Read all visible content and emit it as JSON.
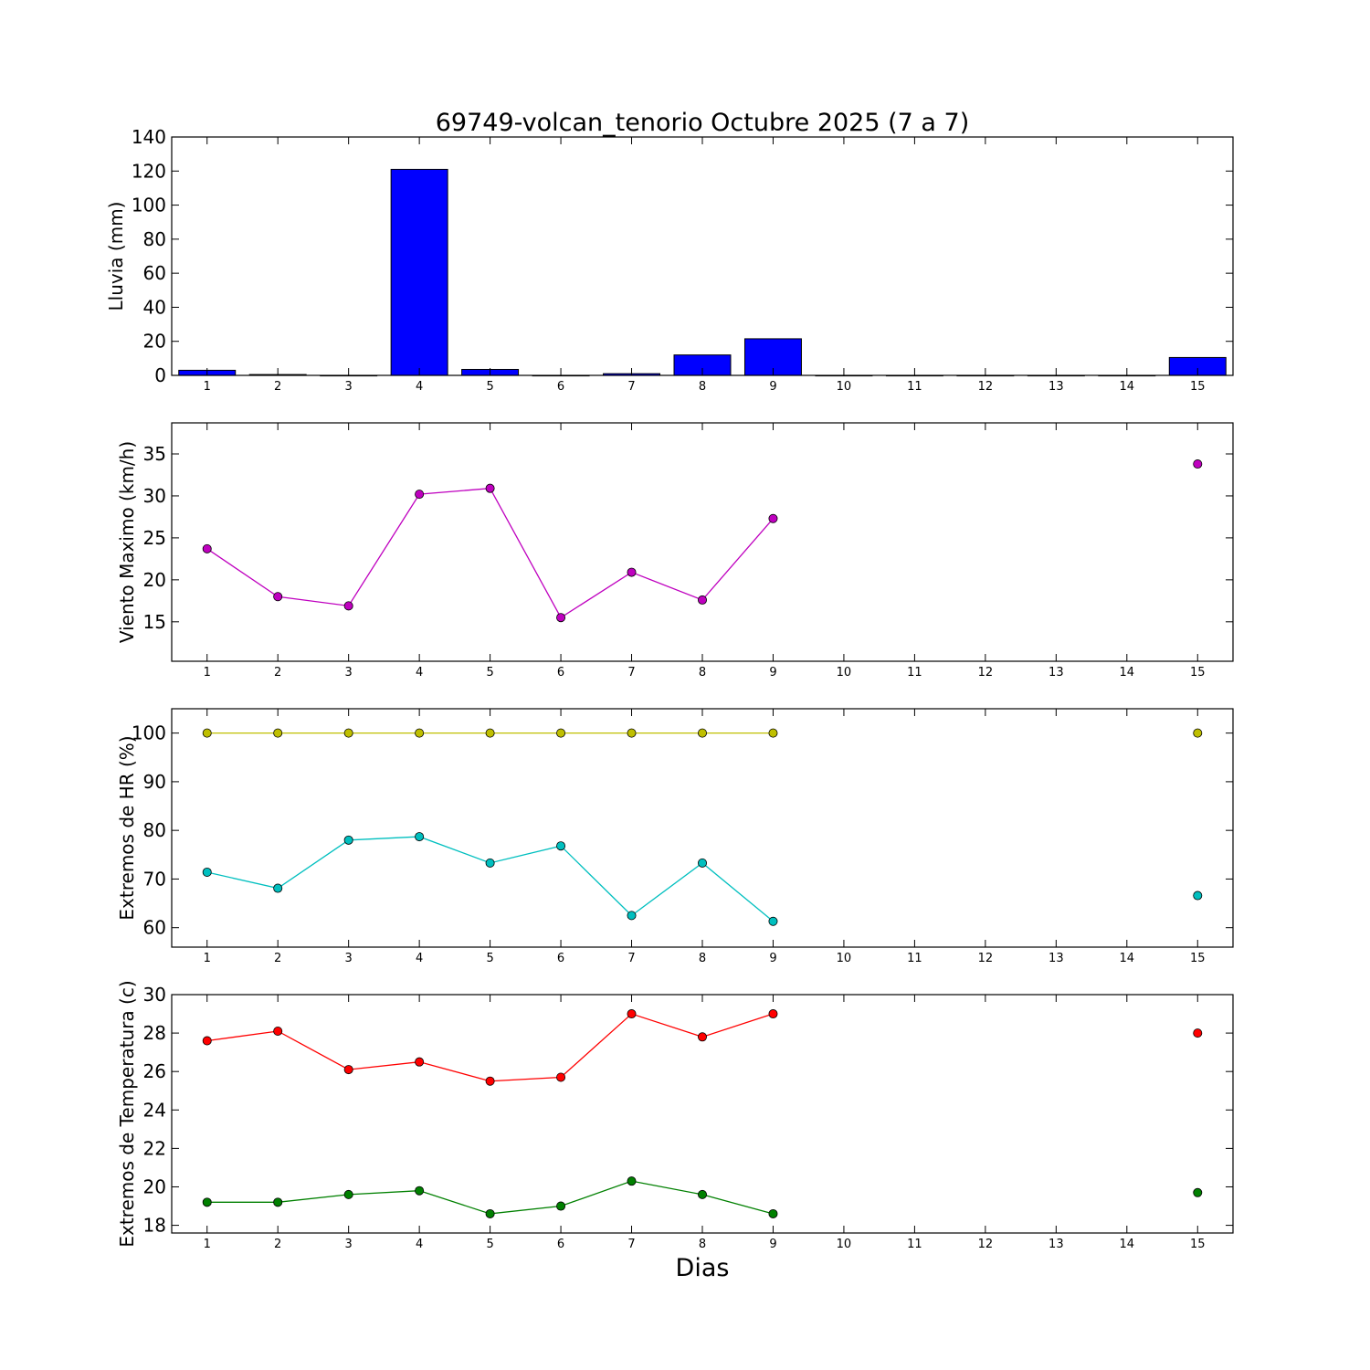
{
  "figure": {
    "title": "69749-volcan_tenorio Octubre 2025  (7 a 7)",
    "xlabel": "Dias"
  },
  "chart_data": [
    {
      "type": "bar",
      "name": "lluvia",
      "ylabel": "Lluvia (mm)",
      "ylim": [
        0,
        140
      ],
      "yticks": [
        0,
        20,
        40,
        60,
        80,
        100,
        120,
        140
      ],
      "xlim": [
        0.5,
        15.5
      ],
      "xticks": [
        1,
        2,
        3,
        4,
        5,
        6,
        7,
        8,
        9,
        10,
        11,
        12,
        13,
        14,
        15
      ],
      "bar_color": "#0000ff",
      "series": [
        {
          "x": [
            1,
            2,
            3,
            4,
            5,
            6,
            7,
            8,
            9,
            10,
            11,
            12,
            13,
            14,
            15
          ],
          "values": [
            3,
            0.5,
            0,
            121,
            3.5,
            0,
            1,
            12,
            21.5,
            0,
            0,
            0,
            0,
            0,
            10.5
          ]
        }
      ]
    },
    {
      "type": "line",
      "name": "viento",
      "ylabel": "Viento Maximo (km/h)",
      "ylim": [
        10.3,
        38.7
      ],
      "yticks": [
        15,
        20,
        25,
        30,
        35
      ],
      "xlim": [
        0.5,
        15.5
      ],
      "xticks": [
        1,
        2,
        3,
        4,
        5,
        6,
        7,
        8,
        9,
        10,
        11,
        12,
        13,
        14,
        15
      ],
      "series": [
        {
          "color": "#bf00bf",
          "x": [
            1,
            2,
            3,
            4,
            5,
            6,
            7,
            8,
            9,
            15
          ],
          "values": [
            23.7,
            18.0,
            16.9,
            30.2,
            30.9,
            15.5,
            20.9,
            17.6,
            27.3,
            33.8
          ]
        }
      ]
    },
    {
      "type": "line",
      "name": "humedad",
      "ylabel": "Extremos de HR (%)",
      "ylim": [
        56,
        105
      ],
      "yticks": [
        60,
        70,
        80,
        90,
        100
      ],
      "xlim": [
        0.5,
        15.5
      ],
      "xticks": [
        1,
        2,
        3,
        4,
        5,
        6,
        7,
        8,
        9,
        10,
        11,
        12,
        13,
        14,
        15
      ],
      "series": [
        {
          "color": "#bfbf00",
          "x": [
            1,
            2,
            3,
            4,
            5,
            6,
            7,
            8,
            9,
            15
          ],
          "values": [
            100,
            100,
            100,
            100,
            100,
            100,
            100,
            100,
            100,
            100
          ]
        },
        {
          "color": "#00bfbf",
          "x": [
            1,
            2,
            3,
            4,
            5,
            6,
            7,
            8,
            9,
            15
          ],
          "values": [
            71.4,
            68.1,
            78.0,
            78.7,
            73.3,
            76.8,
            62.5,
            73.3,
            61.3,
            66.6
          ]
        }
      ]
    },
    {
      "type": "line",
      "name": "temperatura",
      "ylabel": "Extremos de Temperatura (c)",
      "ylim": [
        17.6,
        30
      ],
      "yticks": [
        18,
        20,
        22,
        24,
        26,
        28,
        30
      ],
      "xlim": [
        0.5,
        15.5
      ],
      "xticks": [
        1,
        2,
        3,
        4,
        5,
        6,
        7,
        8,
        9,
        10,
        11,
        12,
        13,
        14,
        15
      ],
      "series": [
        {
          "color": "#ff0000",
          "x": [
            1,
            2,
            3,
            4,
            5,
            6,
            7,
            8,
            9,
            15
          ],
          "values": [
            27.6,
            28.1,
            26.1,
            26.5,
            25.5,
            25.7,
            29.0,
            27.8,
            29.0,
            28.0
          ]
        },
        {
          "color": "#008000",
          "x": [
            1,
            2,
            3,
            4,
            5,
            6,
            7,
            8,
            9,
            15
          ],
          "values": [
            19.2,
            19.2,
            19.6,
            19.8,
            18.6,
            19.0,
            20.3,
            19.6,
            18.6,
            19.7
          ]
        }
      ]
    }
  ]
}
